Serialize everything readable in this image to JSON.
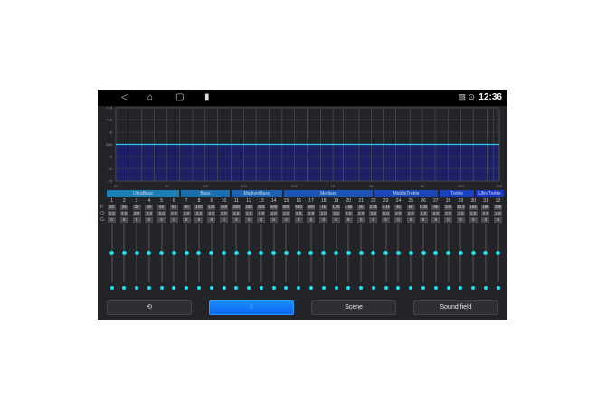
{
  "status": {
    "time": "12:36",
    "icons": [
      "back-icon",
      "home-icon",
      "recents-icon",
      "battery-icon",
      "no-signal-icon",
      "location-icon"
    ]
  },
  "chart": {
    "y_labels": [
      "+15",
      "+10",
      "+5",
      "0dB",
      "-5",
      "-10",
      "-15"
    ],
    "x_labels": [
      "20",
      "50",
      "100",
      "200",
      "500",
      "1K",
      "2K",
      "5K",
      "10K",
      "20K"
    ],
    "x_values": [
      20,
      50,
      100,
      200,
      500,
      1000,
      2000,
      5000,
      10000,
      20000
    ],
    "ylim": [
      -15,
      15
    ],
    "gain_db": 0,
    "line_color": "#2fc6f0",
    "fill_color": "#1c1f63"
  },
  "groups": [
    {
      "label": "UltraBass",
      "color": "#1b7fb5"
    },
    {
      "label": "Bass",
      "color": "#1b6fb0"
    },
    {
      "label": "MediumBass",
      "color": "#1b62b0"
    },
    {
      "label": "Mediant",
      "color": "#1a55b5"
    },
    {
      "label": "MiddleTreble",
      "color": "#1a48b8"
    },
    {
      "label": "Treble",
      "color": "#1a3fbf"
    },
    {
      "label": "UltraTreble",
      "color": "#1a36c4"
    }
  ],
  "row_labels": [
    "F:",
    "Q:",
    "G:"
  ],
  "bands": {
    "numbers": [
      "1",
      "2",
      "3",
      "4",
      "5",
      "6",
      "7",
      "8",
      "9",
      "10",
      "11",
      "12",
      "13",
      "14",
      "15",
      "16",
      "17",
      "18",
      "19",
      "20",
      "21",
      "22",
      "23",
      "24",
      "25",
      "26",
      "27",
      "28",
      "29",
      "30",
      "31",
      "32"
    ],
    "freqs": [
      "20",
      "25",
      "32",
      "40",
      "50",
      "63",
      "80",
      "100",
      "125",
      "160",
      "200",
      "250",
      "315",
      "400",
      "500",
      "630",
      "800",
      "1k",
      "1.2k",
      "1.6k",
      "2k",
      "2.5k",
      "3.1k",
      "4k",
      "5k",
      "6.3k",
      "8k",
      "10k",
      "12.5",
      "16k",
      "18k",
      "20k"
    ],
    "q": "2.0",
    "gain": "0"
  },
  "buttons": {
    "reset": "reset-icon",
    "eq": "equalizer-icon",
    "scene": "Scene",
    "sound_field": "Sound field"
  },
  "accent": "#19e1f0"
}
